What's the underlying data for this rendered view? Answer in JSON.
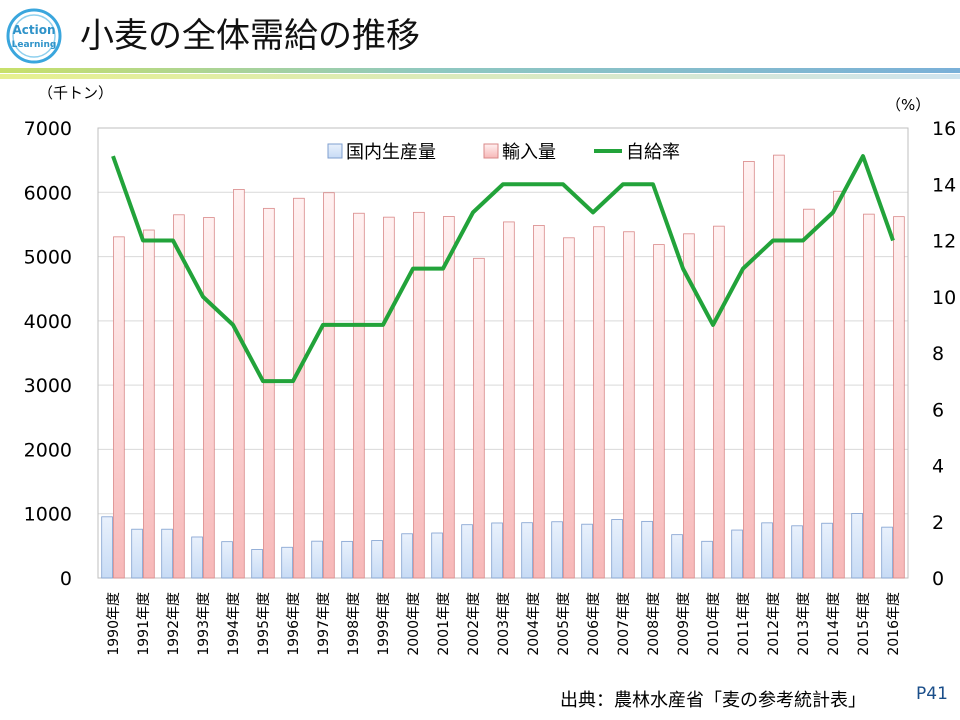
{
  "header": {
    "logo_text_line1": "Action",
    "logo_text_line2": "Learning",
    "title": "小麦の全体需給の推移"
  },
  "footer": {
    "source": "出典：農林水産省「麦の参考統計表」",
    "page_number": "P41"
  },
  "colors": {
    "domestic_fill": "#c7dbf5",
    "import_fill": "#f7b8b8",
    "ratio_line": "#22a33a",
    "grid": "#d9d9d9"
  },
  "chart_data": {
    "type": "bar",
    "title": "小麦の全体需給の推移",
    "left_axis_unit": "（千トン）",
    "right_axis_unit": "（%）",
    "ylim": [
      0,
      7000
    ],
    "y_ticks": [
      "0",
      "1000",
      "2000",
      "3000",
      "4000",
      "5000",
      "6000",
      "7000"
    ],
    "y2lim": [
      0,
      16
    ],
    "y2_ticks": [
      "0",
      "2",
      "4",
      "6",
      "8",
      "10",
      "12",
      "14",
      "16"
    ],
    "grid": true,
    "legend_position": "top-center",
    "categories": [
      "1990年度",
      "1991年度",
      "1992年度",
      "1993年度",
      "1994年度",
      "1995年度",
      "1996年度",
      "1997年度",
      "1998年度",
      "1999年度",
      "2000年度",
      "2001年度",
      "2002年度",
      "2003年度",
      "2004年度",
      "2005年度",
      "2006年度",
      "2007年度",
      "2008年度",
      "2009年度",
      "2010年度",
      "2011年度",
      "2012年度",
      "2013年度",
      "2014年度",
      "2015年度",
      "2016年度"
    ],
    "series": [
      {
        "name": "国内生産量",
        "kind": "bar",
        "axis": "left",
        "values": [
          952,
          759,
          759,
          638,
          565,
          444,
          478,
          573,
          570,
          583,
          688,
          700,
          829,
          856,
          860,
          875,
          837,
          910,
          881,
          674,
          571,
          746,
          858,
          812,
          852,
          1004,
          791
        ]
      },
      {
        "name": "輸入量",
        "kind": "bar",
        "axis": "left",
        "values": [
          5307,
          5413,
          5650,
          5607,
          6044,
          5750,
          5907,
          5993,
          5674,
          5613,
          5688,
          5624,
          4973,
          5539,
          5484,
          5292,
          5464,
          5386,
          5186,
          5354,
          5473,
          6480,
          6578,
          5737,
          6016,
          5660,
          5621
        ]
      },
      {
        "name": "自給率",
        "kind": "line",
        "axis": "right",
        "values": [
          15,
          12,
          12,
          10,
          9,
          7,
          7,
          9,
          9,
          9,
          11,
          11,
          13,
          14,
          14,
          14,
          13,
          14,
          14,
          11,
          9,
          11,
          12,
          12,
          13,
          15,
          12
        ]
      }
    ]
  }
}
